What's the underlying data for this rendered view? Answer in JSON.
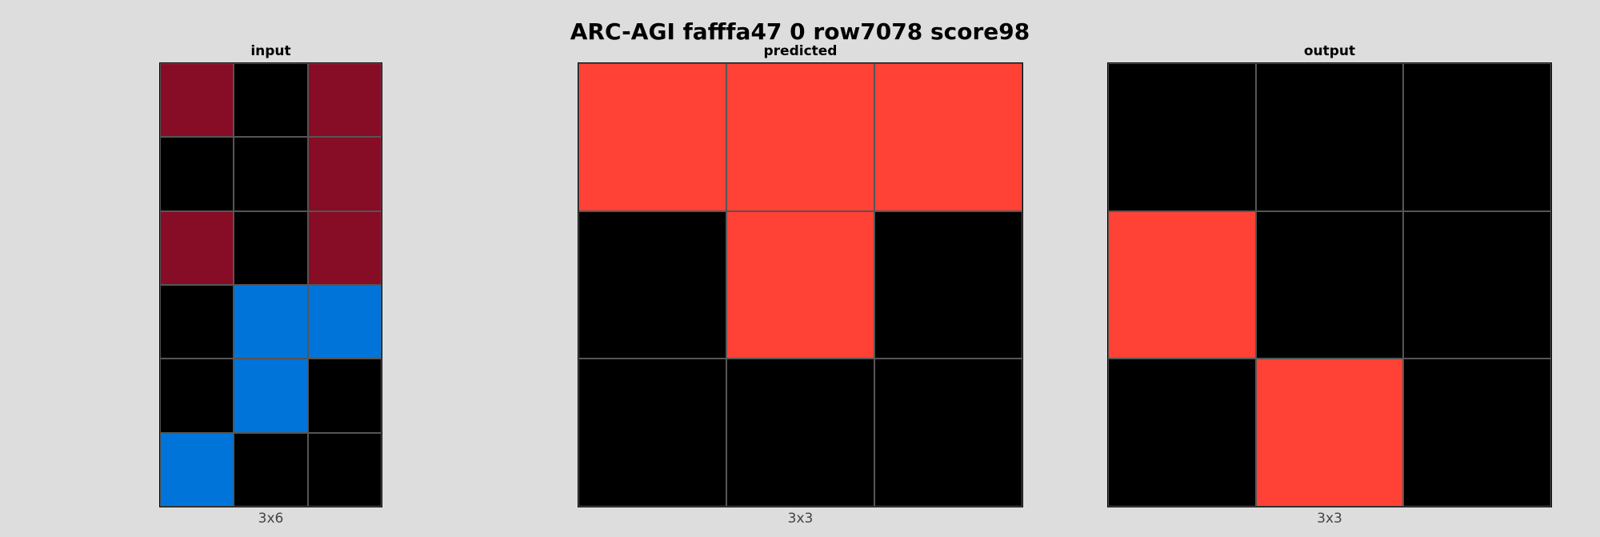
{
  "title": "ARC-AGI fafffa47 0 row7078 score98",
  "palette": {
    "0": "#000000",
    "1": "#0074D9",
    "2": "#FF4136",
    "9": "#870C25"
  },
  "panels": [
    {
      "id": "input",
      "title": "input",
      "dims": "3x6",
      "cols": 3,
      "rows": 6,
      "grid": [
        [
          9,
          0,
          9
        ],
        [
          0,
          0,
          9
        ],
        [
          9,
          0,
          9
        ],
        [
          0,
          1,
          1
        ],
        [
          0,
          1,
          0
        ],
        [
          1,
          0,
          0
        ]
      ]
    },
    {
      "id": "predicted",
      "title": "predicted",
      "dims": "3x3",
      "cols": 3,
      "rows": 3,
      "grid": [
        [
          2,
          2,
          2
        ],
        [
          0,
          2,
          0
        ],
        [
          0,
          0,
          0
        ]
      ]
    },
    {
      "id": "output",
      "title": "output",
      "dims": "3x3",
      "cols": 3,
      "rows": 3,
      "grid": [
        [
          0,
          0,
          0
        ],
        [
          2,
          0,
          0
        ],
        [
          0,
          2,
          0
        ]
      ]
    }
  ]
}
